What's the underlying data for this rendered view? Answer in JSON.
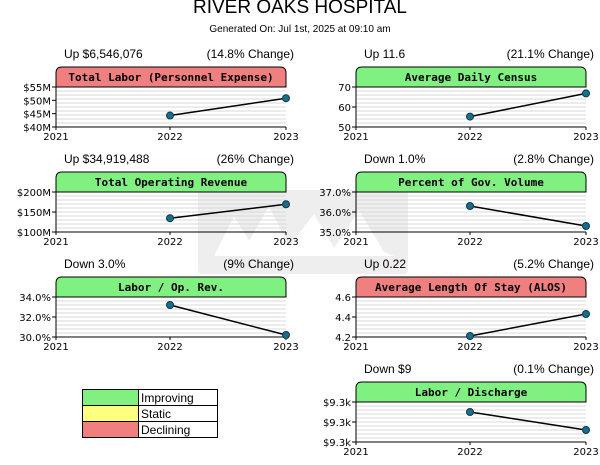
{
  "header": {
    "title": "RIVER OAKS HOSPITAL",
    "subtitle": "Generated On: Jul 1st, 2025 at 09:10 am"
  },
  "colors": {
    "improving": "#80f080",
    "static": "#ffff80",
    "declining": "#f08080",
    "line": "#000000",
    "point": "#1a6e8c"
  },
  "legend": [
    {
      "label": "Improving",
      "color": "#80f080"
    },
    {
      "label": "Static",
      "color": "#ffff80"
    },
    {
      "label": "Declining",
      "color": "#f08080"
    }
  ],
  "chart_data": [
    {
      "type": "line",
      "title": "Total Labor (Personnel Expense)",
      "status": "declining",
      "change_left": "Up $6,546,076",
      "change_right": "(14.8% Change)",
      "x": [
        "2021",
        "2022",
        "2023"
      ],
      "values": [
        null,
        44.3,
        50.8
      ],
      "ylim": [
        40,
        55
      ],
      "yticks": [
        40,
        45,
        50,
        55
      ],
      "yticklabels": [
        "$40M",
        "$45M",
        "$50M",
        "$55M"
      ],
      "grid": true
    },
    {
      "type": "line",
      "title": "Average Daily Census",
      "status": "improving",
      "change_left": "Up 11.6",
      "change_right": "(21.1% Change)",
      "x": [
        "2021",
        "2022",
        "2023"
      ],
      "values": [
        null,
        55.2,
        66.8
      ],
      "ylim": [
        50,
        70
      ],
      "yticks": [
        50,
        60,
        70
      ],
      "yticklabels": [
        "50",
        "60",
        "70"
      ],
      "grid": true
    },
    {
      "type": "line",
      "title": "Total Operating Revenue",
      "status": "improving",
      "change_left": "Up $34,919,488",
      "change_right": "(26% Change)",
      "x": [
        "2021",
        "2022",
        "2023"
      ],
      "values": [
        null,
        134.5,
        169.4
      ],
      "ylim": [
        100,
        200
      ],
      "yticks": [
        100,
        150,
        200
      ],
      "yticklabels": [
        "$100M",
        "$150M",
        "$200M"
      ],
      "grid": true
    },
    {
      "type": "line",
      "title": "Percent of Gov. Volume",
      "status": "improving",
      "change_left": "Down 1.0%",
      "change_right": "(2.8% Change)",
      "x": [
        "2021",
        "2022",
        "2023"
      ],
      "values": [
        null,
        36.3,
        35.3
      ],
      "ylim": [
        35,
        37
      ],
      "yticks": [
        35,
        36,
        37
      ],
      "yticklabels": [
        "35.0%",
        "36.0%",
        "37.0%"
      ],
      "grid": true
    },
    {
      "type": "line",
      "title": "Labor / Op. Rev.",
      "status": "improving",
      "change_left": "Down 3.0%",
      "change_right": "(9% Change)",
      "x": [
        "2021",
        "2022",
        "2023"
      ],
      "values": [
        null,
        33.2,
        30.2
      ],
      "ylim": [
        30,
        34
      ],
      "yticks": [
        30,
        32,
        34
      ],
      "yticklabels": [
        "30.0%",
        "32.0%",
        "34.0%"
      ],
      "grid": true
    },
    {
      "type": "line",
      "title": "Average Length Of Stay (ALOS)",
      "status": "declining",
      "change_left": "Up 0.22",
      "change_right": "(5.2% Change)",
      "x": [
        "2021",
        "2022",
        "2023"
      ],
      "values": [
        null,
        4.21,
        4.43
      ],
      "ylim": [
        4.2,
        4.6
      ],
      "yticks": [
        4.2,
        4.4,
        4.6
      ],
      "yticklabels": [
        "4.2",
        "4.4",
        "4.6"
      ],
      "grid": true
    },
    {
      "type": "line",
      "title": "Labor / Discharge",
      "status": "improving",
      "change_left": "Down $9",
      "change_right": "(0.1% Change)",
      "x": [
        "2021",
        "2022",
        "2023"
      ],
      "values": [
        null,
        9.315,
        9.306
      ],
      "ylim": [
        9.3,
        9.32
      ],
      "yticks": [
        9.3,
        9.31,
        9.32
      ],
      "yticklabels": [
        "$9.3k",
        "$9.3k",
        "$9.3k"
      ],
      "grid": true
    }
  ]
}
